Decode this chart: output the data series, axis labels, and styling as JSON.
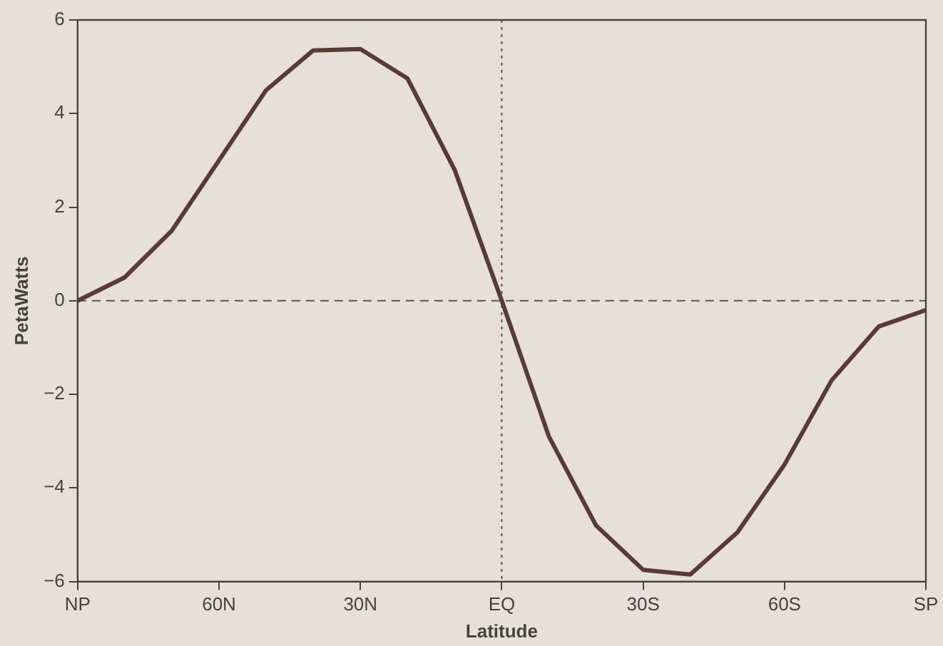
{
  "chart_data": {
    "type": "line",
    "xlabel": "Latitude",
    "ylabel": "PetaWatts",
    "x": [
      90,
      80,
      70,
      60,
      50,
      40,
      30,
      20,
      10,
      0,
      -10,
      -20,
      -30,
      -40,
      -50,
      -60,
      -70,
      -80,
      -90
    ],
    "series": [
      {
        "color": "#5a3a36",
        "values": [
          0,
          0.5,
          1.5,
          3.0,
          4.5,
          5.35,
          5.38,
          4.75,
          2.8,
          0,
          -2.9,
          -4.8,
          -5.75,
          -5.85,
          -4.95,
          -3.5,
          -1.7,
          -0.55,
          -0.2
        ]
      }
    ],
    "xlim": [
      90,
      -90
    ],
    "xticks": [
      {
        "value": 90,
        "label": "NP"
      },
      {
        "value": 60,
        "label": "60N"
      },
      {
        "value": 30,
        "label": "30N"
      },
      {
        "value": 0,
        "label": "EQ"
      },
      {
        "value": -30,
        "label": "30S"
      },
      {
        "value": -60,
        "label": "60S"
      },
      {
        "value": -90,
        "label": "SP"
      }
    ],
    "ylim": [
      -6,
      6
    ],
    "yticks": [
      -6,
      -4,
      -2,
      0,
      2,
      4,
      6
    ],
    "ref_lines": [
      {
        "axis": "y",
        "value": 0,
        "line_style": "dashed"
      },
      {
        "axis": "x",
        "value": 0,
        "line_style": "dotted"
      }
    ],
    "grid": false,
    "legend": false,
    "marker": "none",
    "line_style": "solid"
  }
}
